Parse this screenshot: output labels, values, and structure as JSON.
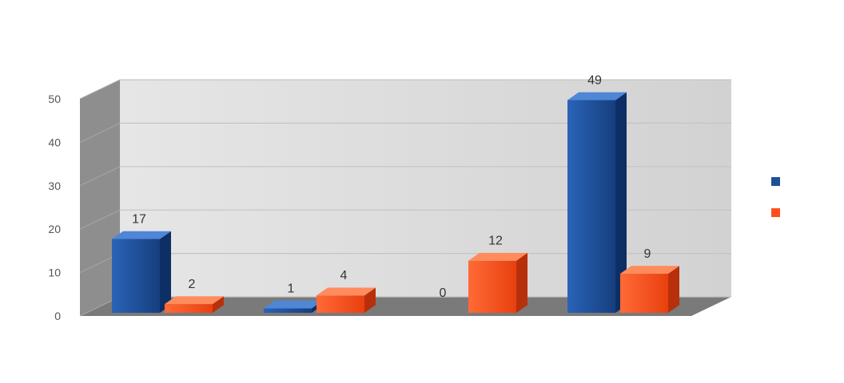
{
  "chart_data": {
    "type": "bar",
    "title": "",
    "xlabel": "",
    "ylabel": "",
    "ylim": [
      0,
      50
    ],
    "y_ticks": [
      0,
      10,
      20,
      30,
      40,
      50
    ],
    "categories": [
      "",
      "",
      "",
      ""
    ],
    "series": [
      {
        "name": "",
        "color": "#1f4e9a",
        "values": [
          17,
          1,
          0,
          49
        ]
      },
      {
        "name": "",
        "color": "#ff4f1f",
        "values": [
          2,
          4,
          12,
          9
        ]
      }
    ],
    "data_labels": [
      [
        "17",
        "1",
        "0",
        "49"
      ],
      [
        "2",
        "4",
        "12",
        "9"
      ]
    ],
    "grid": true,
    "legend_position": "right",
    "style": "3d"
  }
}
